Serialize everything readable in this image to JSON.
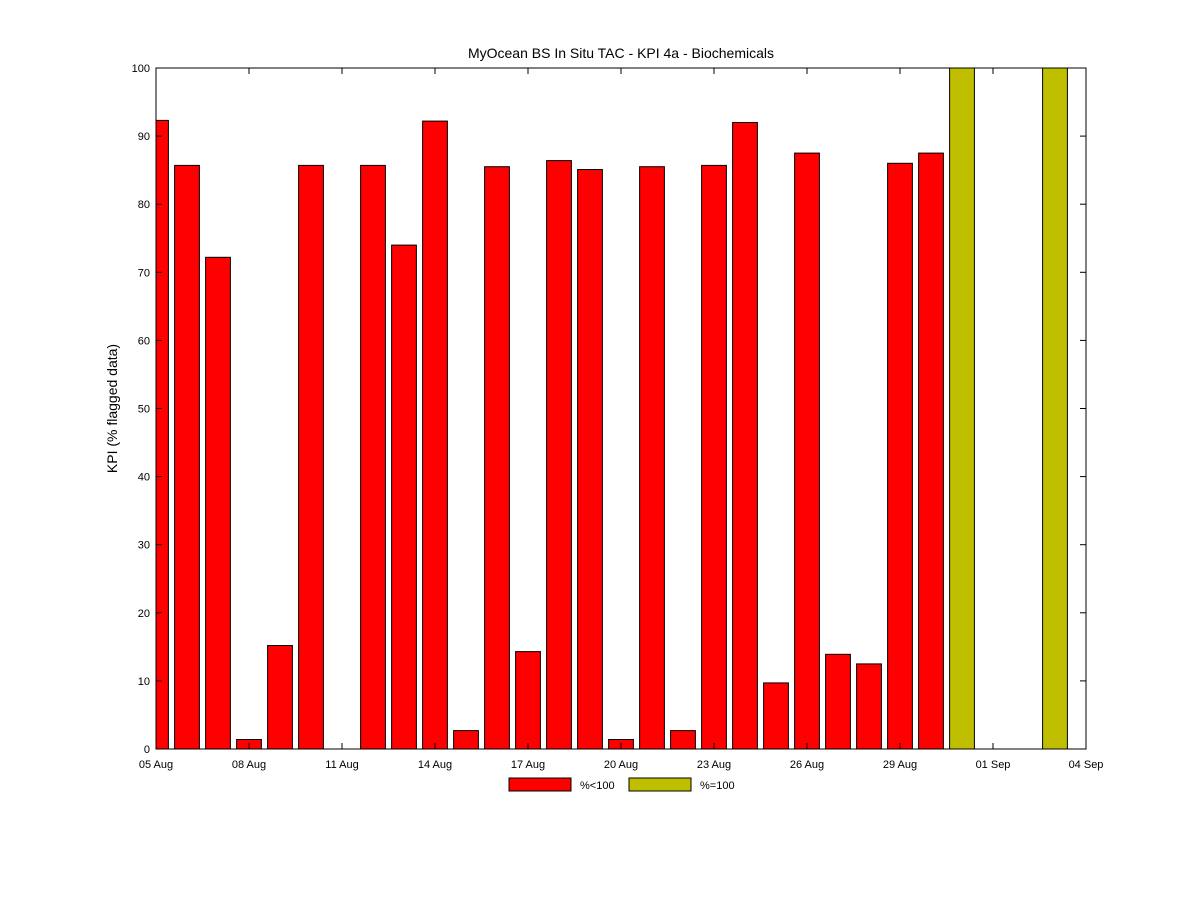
{
  "chart_data": {
    "type": "bar",
    "title": "MyOcean  BS In Situ TAC - KPI 4a - Biochemicals",
    "xlabel": "",
    "ylabel": "KPI (% flagged data)",
    "ylim": [
      0,
      100
    ],
    "y_ticks": [
      0,
      10,
      20,
      30,
      40,
      50,
      60,
      70,
      80,
      90,
      100
    ],
    "x_range": [
      "2013-08-05",
      "2013-09-04"
    ],
    "x_tick_dates": [
      "2013-08-05",
      "2013-08-08",
      "2013-08-11",
      "2013-08-14",
      "2013-08-17",
      "2013-08-20",
      "2013-08-23",
      "2013-08-26",
      "2013-08-29",
      "2013-09-01",
      "2013-09-04"
    ],
    "x_tick_labels": [
      "05 Aug",
      "08 Aug",
      "11 Aug",
      "14 Aug",
      "17 Aug",
      "20 Aug",
      "23 Aug",
      "26 Aug",
      "29 Aug",
      "01 Sep",
      "04 Sep"
    ],
    "grid": false,
    "legend_position": "bottom-center",
    "series": [
      {
        "name": "%<100",
        "color": "#ff0000",
        "points": [
          {
            "date": "2013-08-05",
            "value": 92.3
          },
          {
            "date": "2013-08-06",
            "value": 85.7
          },
          {
            "date": "2013-08-07",
            "value": 72.2
          },
          {
            "date": "2013-08-08",
            "value": 1.4
          },
          {
            "date": "2013-08-09",
            "value": 15.2
          },
          {
            "date": "2013-08-10",
            "value": 85.7
          },
          {
            "date": "2013-08-12",
            "value": 85.7
          },
          {
            "date": "2013-08-13",
            "value": 74.0
          },
          {
            "date": "2013-08-14",
            "value": 92.2
          },
          {
            "date": "2013-08-15",
            "value": 2.7
          },
          {
            "date": "2013-08-16",
            "value": 85.5
          },
          {
            "date": "2013-08-17",
            "value": 14.3
          },
          {
            "date": "2013-08-18",
            "value": 86.4
          },
          {
            "date": "2013-08-19",
            "value": 85.1
          },
          {
            "date": "2013-08-20",
            "value": 1.4
          },
          {
            "date": "2013-08-21",
            "value": 85.5
          },
          {
            "date": "2013-08-22",
            "value": 2.7
          },
          {
            "date": "2013-08-23",
            "value": 85.7
          },
          {
            "date": "2013-08-24",
            "value": 92.0
          },
          {
            "date": "2013-08-25",
            "value": 9.7
          },
          {
            "date": "2013-08-26",
            "value": 87.5
          },
          {
            "date": "2013-08-27",
            "value": 13.9
          },
          {
            "date": "2013-08-28",
            "value": 12.5
          },
          {
            "date": "2013-08-29",
            "value": 86.0
          },
          {
            "date": "2013-08-30",
            "value": 87.5
          }
        ]
      },
      {
        "name": "%=100",
        "color": "#bfbf00",
        "points": [
          {
            "date": "2013-08-31",
            "value": 100
          },
          {
            "date": "2013-09-03",
            "value": 100
          }
        ]
      }
    ]
  }
}
